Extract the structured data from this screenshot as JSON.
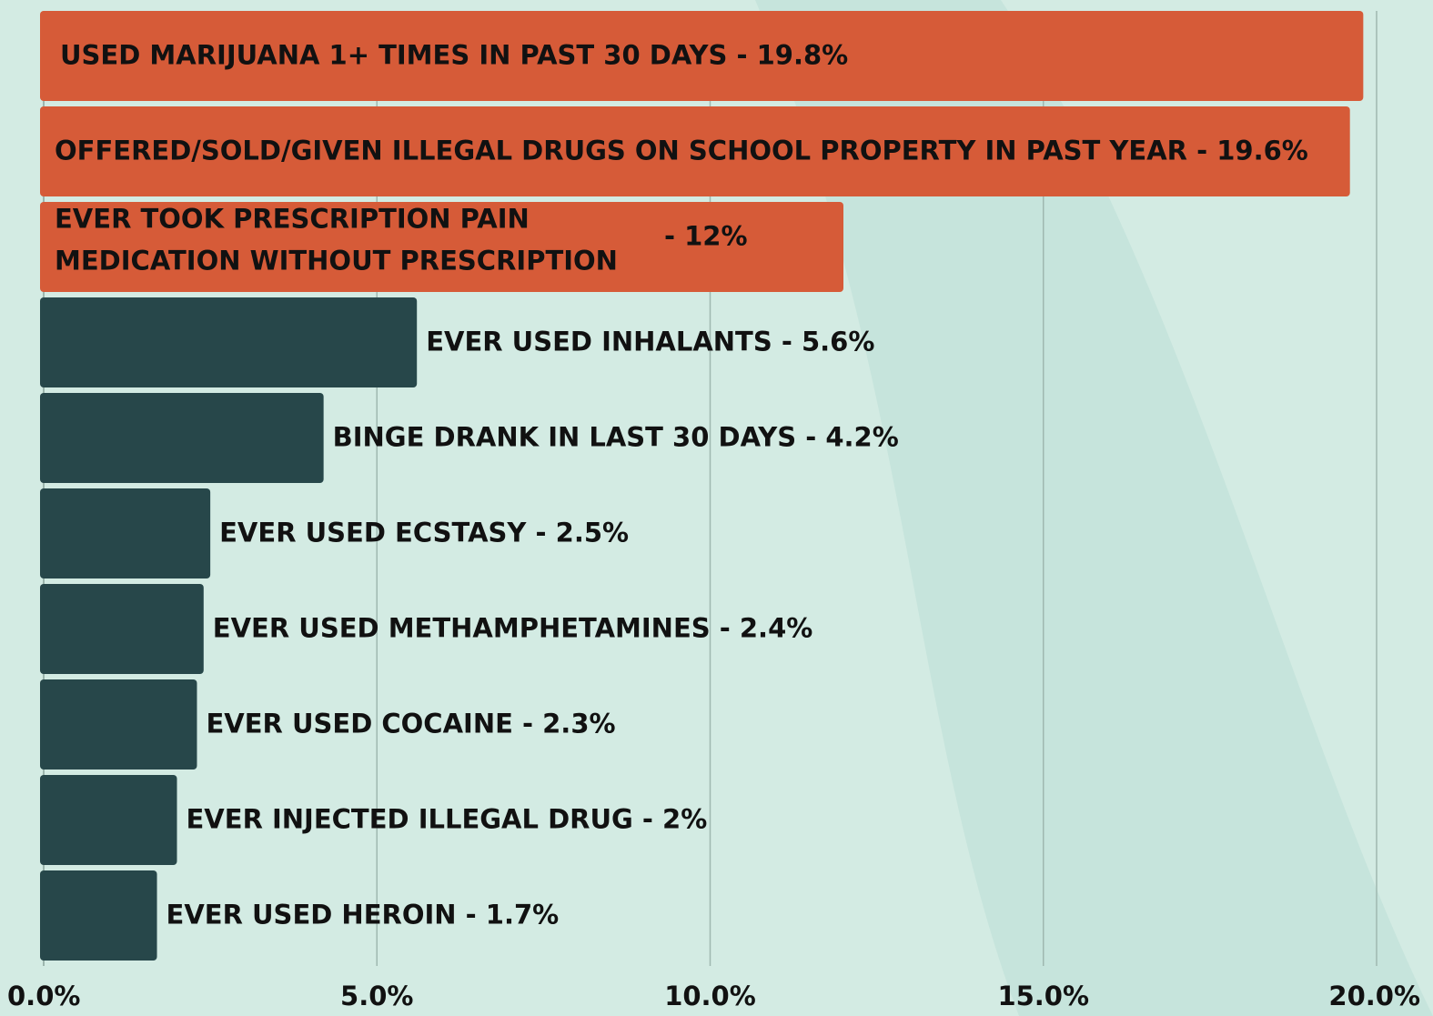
{
  "chart_data": {
    "type": "barh",
    "categories": [
      "USED MARIJUANA 1+ TIMES IN PAST 30 DAYS - 19.8%",
      "OFFERED/SOLD/GIVEN ILLEGAL DRUGS ON SCHOOL PROPERTY IN PAST YEAR - 19.6%",
      [
        "EVER TOOK PRESCRIPTION PAIN",
        "MEDICATION WITHOUT PRESCRIPTION",
        "- 12%"
      ],
      "EVER USED INHALANTS - 5.6%",
      "BINGE DRANK IN LAST 30 DAYS - 4.2%",
      "EVER USED ECSTASY - 2.5%",
      "EVER USED METHAMPHETAMINES - 2.4%",
      "EVER USED COCAINE - 2.3%",
      "EVER INJECTED ILLEGAL DRUG - 2%",
      "EVER USED HEROIN - 1.7%"
    ],
    "values": [
      19.8,
      19.6,
      12,
      5.6,
      4.2,
      2.5,
      2.4,
      2.3,
      2,
      1.7
    ],
    "colors": [
      "#d65b38",
      "#d65b38",
      "#d65b38",
      "#27474a",
      "#27474a",
      "#27474a",
      "#27474a",
      "#27474a",
      "#27474a",
      "#27474a"
    ],
    "xlim": [
      0,
      20
    ],
    "xticks": [
      {
        "value": 0,
        "label": "0.0%"
      },
      {
        "value": 5,
        "label": "5.0%"
      },
      {
        "value": 10,
        "label": "10.0%"
      },
      {
        "value": 15,
        "label": "15.0%"
      },
      {
        "value": 20,
        "label": "20.0%"
      }
    ],
    "grid": true
  }
}
